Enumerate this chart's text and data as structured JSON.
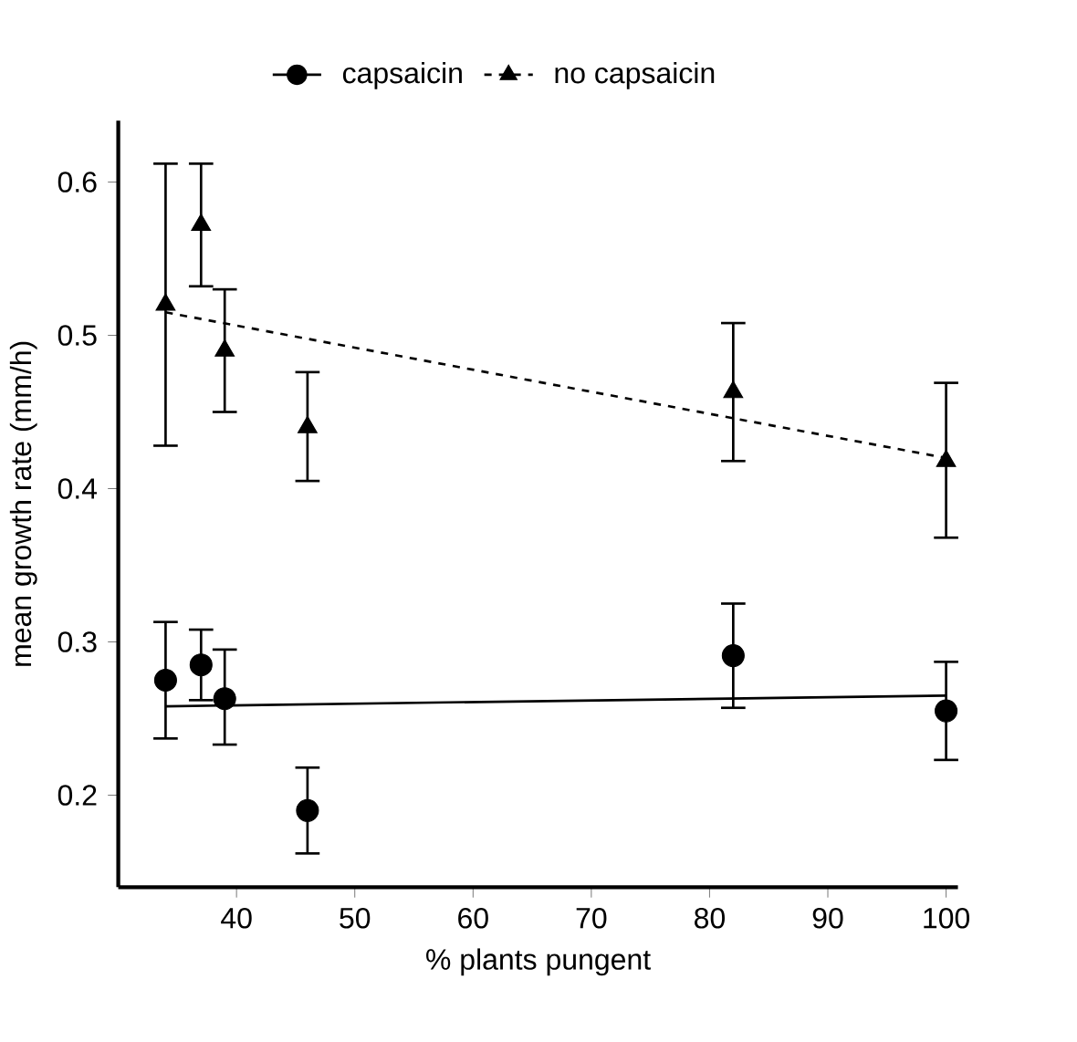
{
  "chart_data": {
    "type": "scatter",
    "xlabel": "% plants pungent",
    "ylabel": "mean growth rate (mm/h)",
    "xlim": [
      30,
      101
    ],
    "ylim": [
      0.14,
      0.64
    ],
    "xticks": [
      40,
      50,
      60,
      70,
      80,
      90,
      100
    ],
    "yticks": [
      0.2,
      0.3,
      0.4,
      0.5,
      0.6
    ],
    "grid": false,
    "legend": "top",
    "series": [
      {
        "name": "capsaicin",
        "marker": "circle",
        "color": "#000000",
        "x": [
          34,
          37,
          39,
          46,
          82,
          100
        ],
        "values": [
          0.275,
          0.285,
          0.263,
          0.19,
          0.291,
          0.255
        ],
        "errors": [
          [
            0.237,
            0.313
          ],
          [
            0.262,
            0.308
          ],
          [
            0.233,
            0.295
          ],
          [
            0.162,
            0.218
          ],
          [
            0.257,
            0.325
          ],
          [
            0.223,
            0.287
          ]
        ]
      },
      {
        "type": "line",
        "marker": "none",
        "line_style": "solid",
        "color": "#000000",
        "x": [
          34,
          100
        ],
        "values": [
          0.258,
          0.265
        ]
      },
      {
        "name": "no capsaicin",
        "marker": "triangle",
        "color": "#000000",
        "x": [
          34,
          37,
          39,
          46,
          82,
          100
        ],
        "values": [
          0.52,
          0.572,
          0.49,
          0.44,
          0.463,
          0.418
        ],
        "errors": [
          [
            0.428,
            0.612
          ],
          [
            0.532,
            0.612
          ],
          [
            0.45,
            0.53
          ],
          [
            0.405,
            0.476
          ],
          [
            0.418,
            0.508
          ],
          [
            0.368,
            0.469
          ]
        ]
      },
      {
        "type": "line",
        "marker": "none",
        "line_style": "dashed",
        "color": "#000000",
        "x": [
          34,
          100
        ],
        "values": [
          0.515,
          0.42
        ]
      }
    ]
  }
}
